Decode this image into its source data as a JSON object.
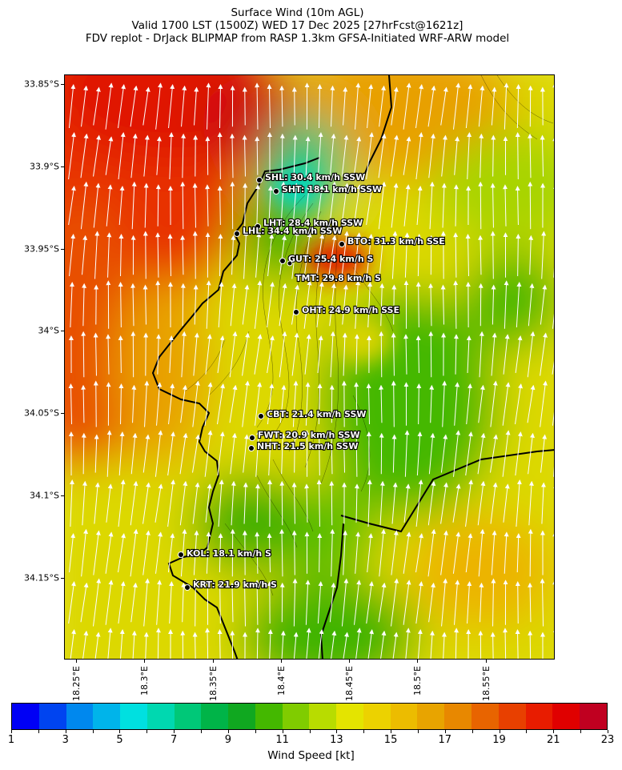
{
  "title": {
    "line1": "Surface Wind (10m AGL)",
    "line2": "Valid 1700 LST (1500Z) WED 17 Dec 2025 [27hrFcst@1621z]",
    "line3": "FDV replot - DrJack BLIPMAP from RASP 1.3km GFSA-Initiated WRF-ARW model"
  },
  "map": {
    "lat_labels": [
      "33.85°S",
      "33.9°S",
      "33.95°S",
      "34°S",
      "34.05°S",
      "34.1°S",
      "34.15°S"
    ],
    "lon_labels": [
      "18.25°E",
      "18.3°E",
      "18.35°E",
      "18.4°E",
      "18.45°E",
      "18.5°E",
      "18.55°E"
    ],
    "stations": [
      {
        "code": "SHL",
        "label": "SHL: 30.4 km/h SSW"
      },
      {
        "code": "SHT",
        "label": "SHT: 18.1 km/h SSW"
      },
      {
        "code": "LHT",
        "label": "LHT: 28.4 km/h SSW"
      },
      {
        "code": "LHL",
        "label": "LHL: 34.4 km/h SSW"
      },
      {
        "code": "BTO",
        "label": "BTO: 31.3 km/h SSE"
      },
      {
        "code": "GUT",
        "label": "GUT: 25.4 km/h S"
      },
      {
        "code": "TMT",
        "label": "TMT: 29.8 km/h S"
      },
      {
        "code": "OHT",
        "label": "OHT: 24.9 km/h SSE"
      },
      {
        "code": "CBT",
        "label": "CBT: 21.4 km/h SSW"
      },
      {
        "code": "FWT",
        "label": "FWT: 20.9 km/h SSW"
      },
      {
        "code": "NHT",
        "label": "NHT: 21.5 km/h SSW"
      },
      {
        "code": "KOL",
        "label": "KOL: 18.1 km/h S"
      },
      {
        "code": "KRT",
        "label": "KRT: 21.9 km/h S"
      }
    ]
  },
  "colorbar": {
    "label": "Wind Speed [kt]",
    "ticks": [
      "1",
      "3",
      "5",
      "7",
      "9",
      "11",
      "13",
      "15",
      "17",
      "19",
      "21",
      "23"
    ],
    "colors": [
      "#0000f5",
      "#0044f0",
      "#0088ee",
      "#00b4ea",
      "#00e0e0",
      "#00d8b0",
      "#00c878",
      "#00b448",
      "#10a820",
      "#44b800",
      "#80cc00",
      "#b8dc00",
      "#e4e400",
      "#ecd200",
      "#ecbc00",
      "#e8a400",
      "#e88800",
      "#e86400",
      "#e84000",
      "#e81c00",
      "#e00000",
      "#c00020"
    ]
  }
}
